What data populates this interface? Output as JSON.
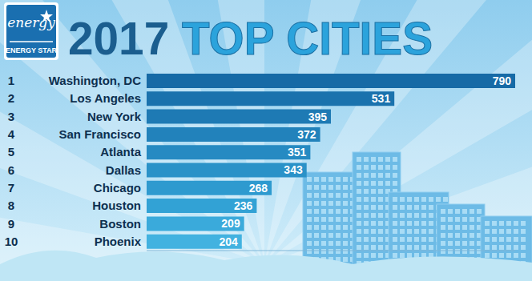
{
  "chart_data": {
    "type": "bar",
    "orientation": "horizontal",
    "title": "2017 TOP CITIES",
    "logo": [
      "energy",
      "ENERGY STAR"
    ],
    "ranks": [
      1,
      2,
      3,
      4,
      5,
      6,
      7,
      8,
      9,
      10
    ],
    "categories": [
      "Washington, DC",
      "Los Angeles",
      "New York",
      "San Francisco",
      "Atlanta",
      "Dallas",
      "Chicago",
      "Houston",
      "Boston",
      "Phoenix"
    ],
    "values": [
      790,
      531,
      395,
      372,
      351,
      343,
      268,
      236,
      209,
      204
    ],
    "colors": [
      "#166aa6",
      "#1a72ad",
      "#1e7ab4",
      "#2282bb",
      "#268ac2",
      "#2a92c8",
      "#2e9acf",
      "#32a2d5",
      "#3aaadb",
      "#42b2e0"
    ],
    "xlim": [
      0,
      790
    ],
    "tick_labels": false,
    "grid": false,
    "data_labels": true
  }
}
